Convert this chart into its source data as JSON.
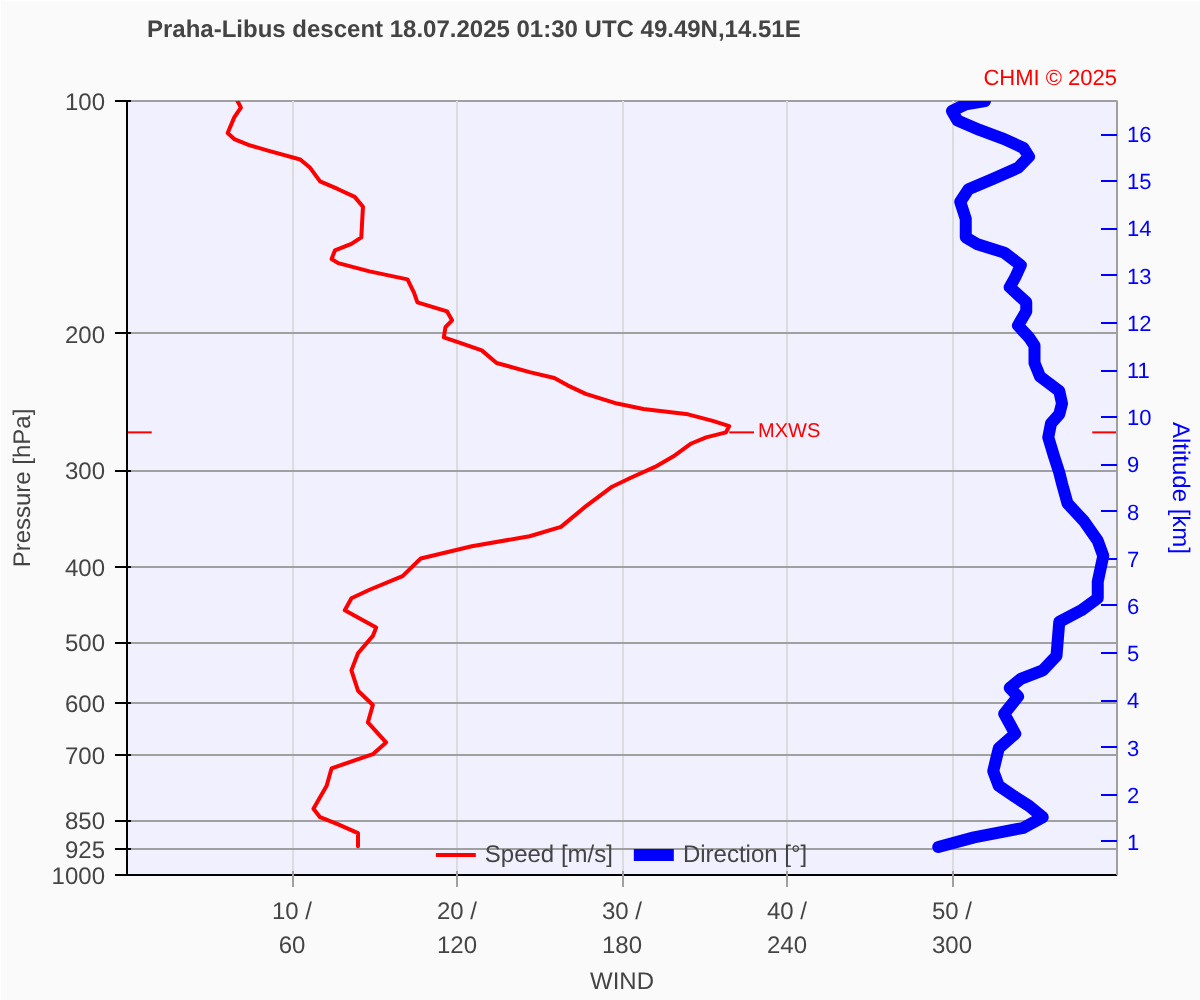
{
  "chart_data": {
    "type": "line",
    "title": "Praha-Libus   descent   18.07.2025 01:30 UTC   49.49N,14.51E",
    "xlabel": "WIND",
    "ylabel": "Pressure [hPa]",
    "y2label": "Altitude [km]",
    "annotations": [
      "CHMI © 2025"
    ],
    "xlim": [
      0,
      60
    ],
    "xticks": [
      {
        "value": 10,
        "label": "10 /"
      },
      {
        "value": 20,
        "label": "20 /"
      },
      {
        "value": 30,
        "label": "30 /"
      },
      {
        "value": 40,
        "label": "40 /"
      },
      {
        "value": 50,
        "label": "50 /"
      }
    ],
    "x2lim": [
      0,
      360
    ],
    "x2ticks": [
      60,
      120,
      180,
      240,
      300
    ],
    "ylim": [
      1000,
      100
    ],
    "yticks": [
      100,
      200,
      300,
      400,
      500,
      600,
      700,
      850,
      925,
      1000
    ],
    "log": "y",
    "y2lim": [
      0.3,
      16.7
    ],
    "y2ticks": [
      1,
      2,
      3,
      4,
      5,
      6,
      7,
      8,
      9,
      10,
      11,
      12,
      13,
      14,
      15,
      16
    ],
    "grid": true,
    "legend": "bottom",
    "line_style": "solid",
    "ref_lines": [
      {
        "axis": "y",
        "value": 268,
        "label": "MXWS",
        "color": "#ff0000"
      }
    ],
    "series": [
      {
        "name": "Speed [m/s]",
        "color": "#ff0000",
        "x": [
          6.7,
          6.9,
          6.5,
          6.1,
          6.5,
          7.4,
          8.6,
          10.5,
          11.1,
          11.7,
          12.8,
          13.8,
          14.3,
          14.2,
          13.6,
          12.6,
          12.4,
          12.8,
          14.7,
          17.0,
          17.4,
          17.6,
          19.4,
          19.7,
          19.3,
          19.2,
          20.1,
          21.5,
          22.4,
          24.4,
          25.9,
          26.7,
          27.8,
          29.7,
          31.3,
          34.0,
          35.5,
          36.5,
          36.3,
          35.1,
          34.2,
          33.2,
          32.0,
          30.5,
          29.4,
          27.8,
          26.3,
          24.4,
          20.9,
          17.8,
          16.7,
          14.7,
          13.6,
          13.2,
          15.1,
          14.9,
          14.0,
          13.6,
          14.0,
          14.9,
          14.6,
          15.7,
          14.9,
          12.4,
          12.1,
          11.3,
          11.7,
          12.8,
          14.0,
          14.0
        ],
        "values": [
          100,
          102,
          105,
          110,
          112,
          114,
          116,
          119,
          122,
          127,
          130,
          133,
          137,
          150,
          153,
          156,
          160,
          162,
          166,
          170,
          177,
          182,
          187,
          192,
          196,
          202,
          205,
          210,
          218,
          224,
          228,
          233,
          239,
          246,
          250,
          254,
          259,
          263,
          268,
          272,
          277,
          287,
          297,
          307,
          315,
          334,
          355,
          365,
          376,
          390,
          411,
          428,
          439,
          455,
          479,
          491,
          517,
          544,
          578,
          603,
          635,
          674,
          698,
          728,
          767,
          821,
          842,
          860,
          883,
          918
        ]
      },
      {
        "name": "Direction [°]",
        "color": "#0000ff",
        "axis": "x2",
        "x": [
          312,
          305,
          300,
          302,
          310,
          319,
          326,
          328,
          324,
          315,
          306,
          303,
          305,
          305,
          309,
          319,
          325,
          323,
          321,
          327,
          327,
          324,
          328,
          330,
          330,
          332,
          339,
          340,
          339,
          336,
          335,
          337,
          339,
          340,
          342,
          348,
          353,
          355,
          353,
          353,
          347,
          339,
          338,
          333,
          325,
          321,
          324,
          319,
          323,
          317,
          315,
          317,
          323,
          328,
          333,
          326,
          308,
          295
        ],
        "values": [
          100,
          101,
          103,
          106,
          109,
          112,
          115,
          118,
          122,
          126,
          130,
          135,
          142,
          150,
          153,
          157,
          163,
          169,
          174,
          182,
          187,
          195,
          202,
          207,
          218,
          227,
          237,
          246,
          254,
          261,
          272,
          287,
          302,
          312,
          331,
          349,
          370,
          387,
          418,
          439,
          455,
          471,
          521,
          544,
          558,
          573,
          588,
          619,
          657,
          686,
          734,
          767,
          793,
          814,
          842,
          869,
          894,
          920
        ]
      }
    ]
  }
}
